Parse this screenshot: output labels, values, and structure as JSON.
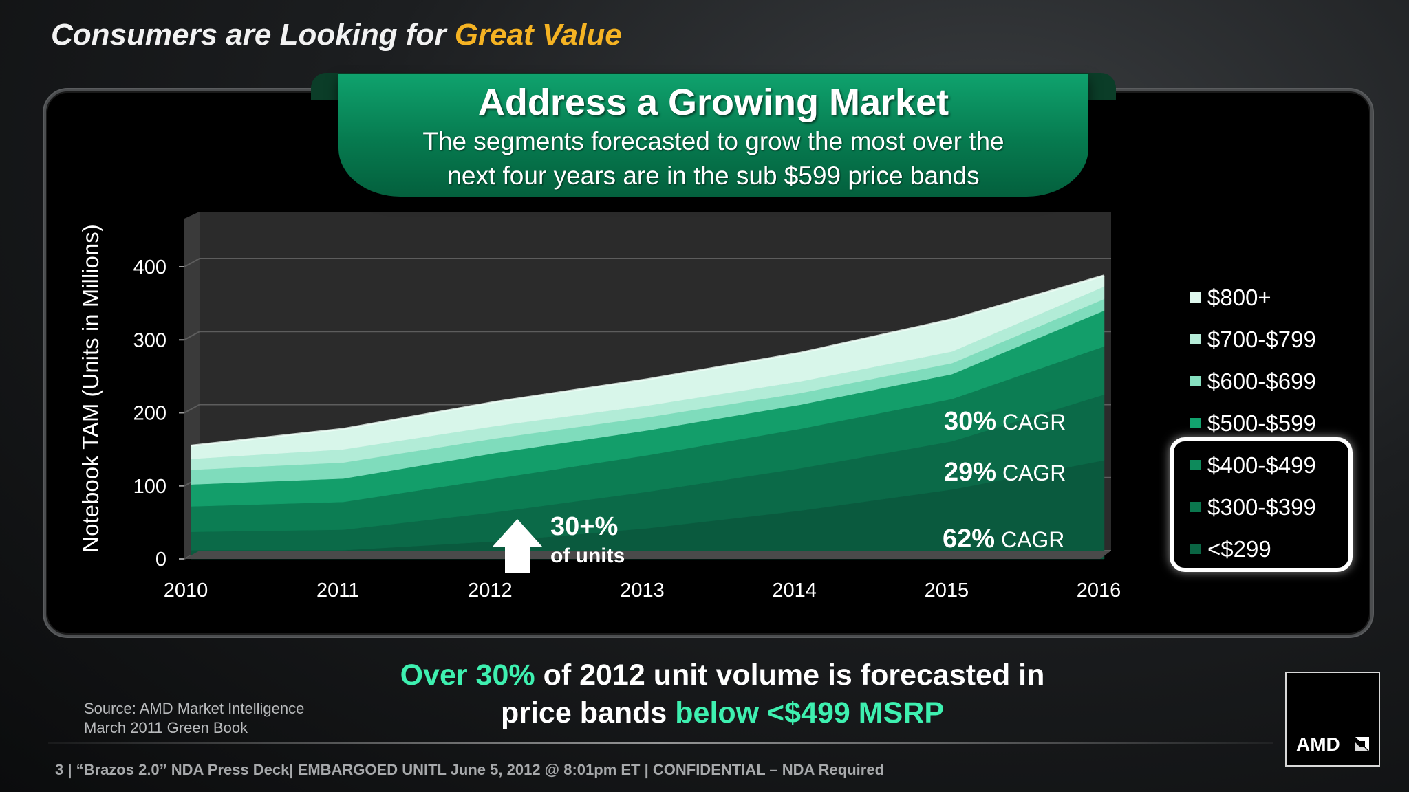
{
  "slide": {
    "title_main": "Consumers are Looking for ",
    "title_highlight": "Great Value"
  },
  "banner": {
    "title": "Address a Growing Market",
    "subtitle_line1": "The segments forecasted to grow the most over the",
    "subtitle_line2": "next four years are in the sub $599 price bands"
  },
  "chart_data": {
    "type": "area",
    "stacked": true,
    "ylabel": "Notebook TAM (Units in Millions)",
    "xlabel": "",
    "ylim": [
      0,
      400
    ],
    "yticks": [
      0,
      100,
      200,
      300,
      400
    ],
    "x": [
      "2010",
      "2011",
      "2012",
      "2013",
      "2014",
      "2015",
      "2016"
    ],
    "series": [
      {
        "name": "<$299",
        "color": "#0a5a3e",
        "values": [
          12,
          12,
          24,
          42,
          66,
          95,
          135
        ]
      },
      {
        "name": "$300-$399",
        "color": "#0b6a48",
        "values": [
          25,
          28,
          40,
          50,
          58,
          66,
          90
        ]
      },
      {
        "name": "$400-$499",
        "color": "#0c7d53",
        "values": [
          35,
          38,
          46,
          50,
          54,
          58,
          66
        ]
      },
      {
        "name": "$500-$599",
        "color": "#139e6a",
        "values": [
          30,
          32,
          35,
          34,
          33,
          34,
          49
        ]
      },
      {
        "name": "$600-$699",
        "color": "#7fdcbc",
        "values": [
          20,
          22,
          20,
          18,
          16,
          15,
          16
        ]
      },
      {
        "name": "$700-$799",
        "color": "#b2ecd7",
        "values": [
          15,
          18,
          17,
          16,
          16,
          16,
          17
        ]
      },
      {
        "name": "$800+",
        "color": "#d8f6ea",
        "values": [
          18,
          28,
          33,
          36,
          39,
          44,
          15
        ]
      }
    ],
    "annotations": [
      {
        "strong": "30%",
        "text": " CAGR"
      },
      {
        "strong": "29%",
        "text": " CAGR"
      },
      {
        "strong": "62%",
        "text": " CAGR"
      },
      {
        "strong": "30+%",
        "text": "of units"
      }
    ],
    "legend_order": [
      "$800+",
      "$700-$799",
      "$600-$699",
      "$500-$599",
      "$400-$499",
      "$300-$399",
      "<$299"
    ],
    "grid": true,
    "legend_position": "right"
  },
  "legend_colors": {
    "$800+": "#dff8ee",
    "$700-$799": "#b6ecd8",
    "$600-$699": "#86dfbf",
    "$500-$599": "#12a36e",
    "$400-$499": "#0d8a5b",
    "$300-$399": "#0b774e",
    "<$299": "#0a6543"
  },
  "bottom": {
    "p1": "Over 30%",
    "p2": " of 2012 unit volume is forecasted in",
    "p3": "price bands ",
    "p4": "below <$499 MSRP"
  },
  "source": {
    "line1": "Source: AMD Market Intelligence",
    "line2": "March 2011 Green Book"
  },
  "logo": {
    "text": "AMD"
  },
  "footer": {
    "text": "3  |  “Brazos 2.0” NDA Press Deck|  EMBARGOED UNITL June 5, 2012  @ 8:01pm ET |  CONFIDENTIAL – NDA Required"
  },
  "colors": {
    "accent_orange": "#f5b323",
    "accent_green": "#3ef0b0",
    "banner_green": "#06804f"
  }
}
